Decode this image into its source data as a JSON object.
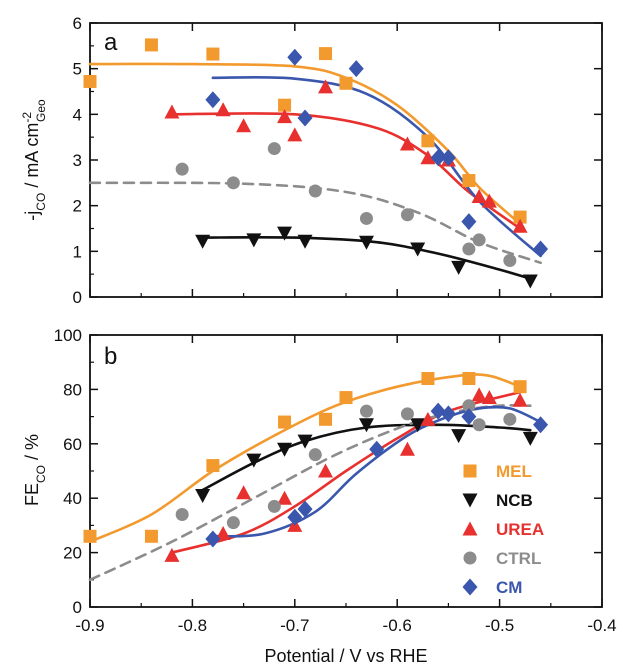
{
  "colors": {
    "MEL": "#f39a2e",
    "NCB": "#111111",
    "UREA": "#e8312f",
    "CTRL": "#8c8c8c",
    "CM": "#3a57ad"
  },
  "chart_data": [
    {
      "panel": "a",
      "type": "scatter",
      "ylabel_main": "-j",
      "ylabel_sub": "CO",
      "ylabel_rest": " / mA cm",
      "ylabel_sup": "-2",
      "ylabel_sub2": "Geo",
      "xlim": [
        -0.9,
        -0.4
      ],
      "ylim": [
        0,
        6
      ],
      "yticks": [
        "0",
        "1",
        "2",
        "3",
        "4",
        "5",
        "6"
      ],
      "series": [
        {
          "name": "MEL",
          "marker": "square",
          "points": [
            [
              -0.9,
              4.72
            ],
            [
              -0.84,
              5.52
            ],
            [
              -0.78,
              5.32
            ],
            [
              -0.71,
              4.2
            ],
            [
              -0.67,
              5.33
            ],
            [
              -0.65,
              4.68
            ],
            [
              -0.57,
              3.42
            ],
            [
              -0.53,
              2.55
            ],
            [
              -0.48,
              1.75
            ]
          ],
          "fit": [
            [
              -0.9,
              5.1
            ],
            [
              -0.8,
              5.1
            ],
            [
              -0.7,
              5.05
            ],
            [
              -0.65,
              4.8
            ],
            [
              -0.6,
              4.2
            ],
            [
              -0.55,
              3.2
            ],
            [
              -0.52,
              2.4
            ],
            [
              -0.48,
              1.6
            ]
          ]
        },
        {
          "name": "NCB",
          "marker": "triangle-down",
          "points": [
            [
              -0.79,
              1.22
            ],
            [
              -0.74,
              1.25
            ],
            [
              -0.71,
              1.4
            ],
            [
              -0.69,
              1.22
            ],
            [
              -0.63,
              1.2
            ],
            [
              -0.58,
              1.05
            ],
            [
              -0.54,
              0.65
            ],
            [
              -0.47,
              0.35
            ]
          ],
          "fit": [
            [
              -0.79,
              1.3
            ],
            [
              -0.7,
              1.3
            ],
            [
              -0.62,
              1.2
            ],
            [
              -0.56,
              0.95
            ],
            [
              -0.5,
              0.6
            ],
            [
              -0.47,
              0.4
            ]
          ]
        },
        {
          "name": "UREA",
          "marker": "triangle",
          "points": [
            [
              -0.82,
              4.05
            ],
            [
              -0.77,
              4.1
            ],
            [
              -0.75,
              3.75
            ],
            [
              -0.71,
              3.95
            ],
            [
              -0.7,
              3.55
            ],
            [
              -0.67,
              4.6
            ],
            [
              -0.59,
              3.35
            ],
            [
              -0.57,
              3.05
            ],
            [
              -0.55,
              3.0
            ],
            [
              -0.52,
              2.2
            ],
            [
              -0.51,
              2.1
            ],
            [
              -0.48,
              1.55
            ]
          ],
          "fit": [
            [
              -0.82,
              4.0
            ],
            [
              -0.7,
              4.0
            ],
            [
              -0.62,
              3.7
            ],
            [
              -0.57,
              3.1
            ],
            [
              -0.53,
              2.3
            ],
            [
              -0.48,
              1.5
            ]
          ]
        },
        {
          "name": "CTRL",
          "marker": "circle",
          "dashed": true,
          "points": [
            [
              -0.81,
              2.8
            ],
            [
              -0.76,
              2.5
            ],
            [
              -0.72,
              3.25
            ],
            [
              -0.68,
              2.32
            ],
            [
              -0.63,
              1.72
            ],
            [
              -0.59,
              1.8
            ],
            [
              -0.53,
              1.05
            ],
            [
              -0.52,
              1.25
            ],
            [
              -0.49,
              0.8
            ]
          ],
          "fit": [
            [
              -0.9,
              2.5
            ],
            [
              -0.75,
              2.48
            ],
            [
              -0.65,
              2.3
            ],
            [
              -0.58,
              1.85
            ],
            [
              -0.52,
              1.2
            ],
            [
              -0.46,
              0.75
            ]
          ]
        },
        {
          "name": "CM",
          "marker": "diamond",
          "points": [
            [
              -0.78,
              4.32
            ],
            [
              -0.7,
              5.25
            ],
            [
              -0.69,
              3.92
            ],
            [
              -0.64,
              5.0
            ],
            [
              -0.56,
              3.05
            ],
            [
              -0.55,
              3.05
            ],
            [
              -0.53,
              1.65
            ],
            [
              -0.46,
              1.05
            ]
          ],
          "fit": [
            [
              -0.78,
              4.8
            ],
            [
              -0.7,
              4.78
            ],
            [
              -0.63,
              4.45
            ],
            [
              -0.57,
              3.5
            ],
            [
              -0.52,
              2.1
            ],
            [
              -0.46,
              0.9
            ]
          ]
        }
      ]
    },
    {
      "panel": "b",
      "type": "scatter",
      "ylabel_main": "FE",
      "ylabel_sub": "CO",
      "ylabel_rest": " / %",
      "xlabel": "Potential / V vs RHE",
      "xlim": [
        -0.9,
        -0.4
      ],
      "ylim": [
        0,
        100
      ],
      "xticks": [
        "-0.9",
        "-0.8",
        "-0.7",
        "-0.6",
        "-0.5",
        "-0.4"
      ],
      "yticks": [
        "0",
        "20",
        "40",
        "60",
        "80",
        "100"
      ],
      "legend_position": "bottom-right",
      "series": [
        {
          "name": "MEL",
          "marker": "square",
          "points": [
            [
              -0.9,
              26
            ],
            [
              -0.84,
              26
            ],
            [
              -0.78,
              52
            ],
            [
              -0.71,
              68
            ],
            [
              -0.67,
              69
            ],
            [
              -0.65,
              77
            ],
            [
              -0.57,
              84
            ],
            [
              -0.53,
              84
            ],
            [
              -0.48,
              81
            ]
          ],
          "fit": [
            [
              -0.9,
              24
            ],
            [
              -0.84,
              34
            ],
            [
              -0.78,
              50
            ],
            [
              -0.72,
              63
            ],
            [
              -0.66,
              74
            ],
            [
              -0.6,
              81
            ],
            [
              -0.54,
              85
            ],
            [
              -0.51,
              85
            ],
            [
              -0.48,
              81
            ]
          ]
        },
        {
          "name": "NCB",
          "marker": "triangle-down",
          "points": [
            [
              -0.79,
              41
            ],
            [
              -0.74,
              54
            ],
            [
              -0.71,
              58
            ],
            [
              -0.69,
              61
            ],
            [
              -0.63,
              67
            ],
            [
              -0.58,
              67
            ],
            [
              -0.54,
              63
            ],
            [
              -0.47,
              62
            ]
          ],
          "fit": [
            [
              -0.79,
              43
            ],
            [
              -0.74,
              53
            ],
            [
              -0.69,
              61
            ],
            [
              -0.63,
              66
            ],
            [
              -0.56,
              67
            ],
            [
              -0.5,
              66
            ],
            [
              -0.47,
              65
            ]
          ]
        },
        {
          "name": "UREA",
          "marker": "triangle",
          "points": [
            [
              -0.82,
              19
            ],
            [
              -0.77,
              27
            ],
            [
              -0.75,
              42
            ],
            [
              -0.71,
              40
            ],
            [
              -0.7,
              30
            ],
            [
              -0.67,
              50
            ],
            [
              -0.59,
              58
            ],
            [
              -0.57,
              69
            ],
            [
              -0.52,
              78
            ],
            [
              -0.51,
              77
            ],
            [
              -0.48,
              76
            ]
          ],
          "fit": [
            [
              -0.82,
              20
            ],
            [
              -0.75,
              27
            ],
            [
              -0.7,
              37
            ],
            [
              -0.65,
              50
            ],
            [
              -0.6,
              62
            ],
            [
              -0.55,
              72
            ],
            [
              -0.48,
              79
            ]
          ]
        },
        {
          "name": "CTRL",
          "marker": "circle",
          "dashed": true,
          "points": [
            [
              -0.81,
              34
            ],
            [
              -0.76,
              31
            ],
            [
              -0.72,
              37
            ],
            [
              -0.68,
              56
            ],
            [
              -0.63,
              72
            ],
            [
              -0.59,
              71
            ],
            [
              -0.53,
              74
            ],
            [
              -0.52,
              67
            ],
            [
              -0.49,
              69
            ]
          ],
          "fit": [
            [
              -0.9,
              10
            ],
            [
              -0.82,
              24
            ],
            [
              -0.74,
              40
            ],
            [
              -0.66,
              56
            ],
            [
              -0.59,
              67
            ],
            [
              -0.54,
              72
            ],
            [
              -0.5,
              74
            ],
            [
              -0.47,
              74
            ]
          ]
        },
        {
          "name": "CM",
          "marker": "diamond",
          "points": [
            [
              -0.78,
              25
            ],
            [
              -0.7,
              33
            ],
            [
              -0.69,
              36
            ],
            [
              -0.62,
              58
            ],
            [
              -0.56,
              72
            ],
            [
              -0.55,
              71
            ],
            [
              -0.53,
              70
            ],
            [
              -0.46,
              67
            ]
          ],
          "fit": [
            [
              -0.78,
              26
            ],
            [
              -0.73,
              27
            ],
            [
              -0.68,
              35
            ],
            [
              -0.64,
              49
            ],
            [
              -0.59,
              63
            ],
            [
              -0.55,
              70
            ],
            [
              -0.52,
              73
            ],
            [
              -0.49,
              73
            ],
            [
              -0.46,
              68
            ]
          ]
        }
      ]
    }
  ]
}
